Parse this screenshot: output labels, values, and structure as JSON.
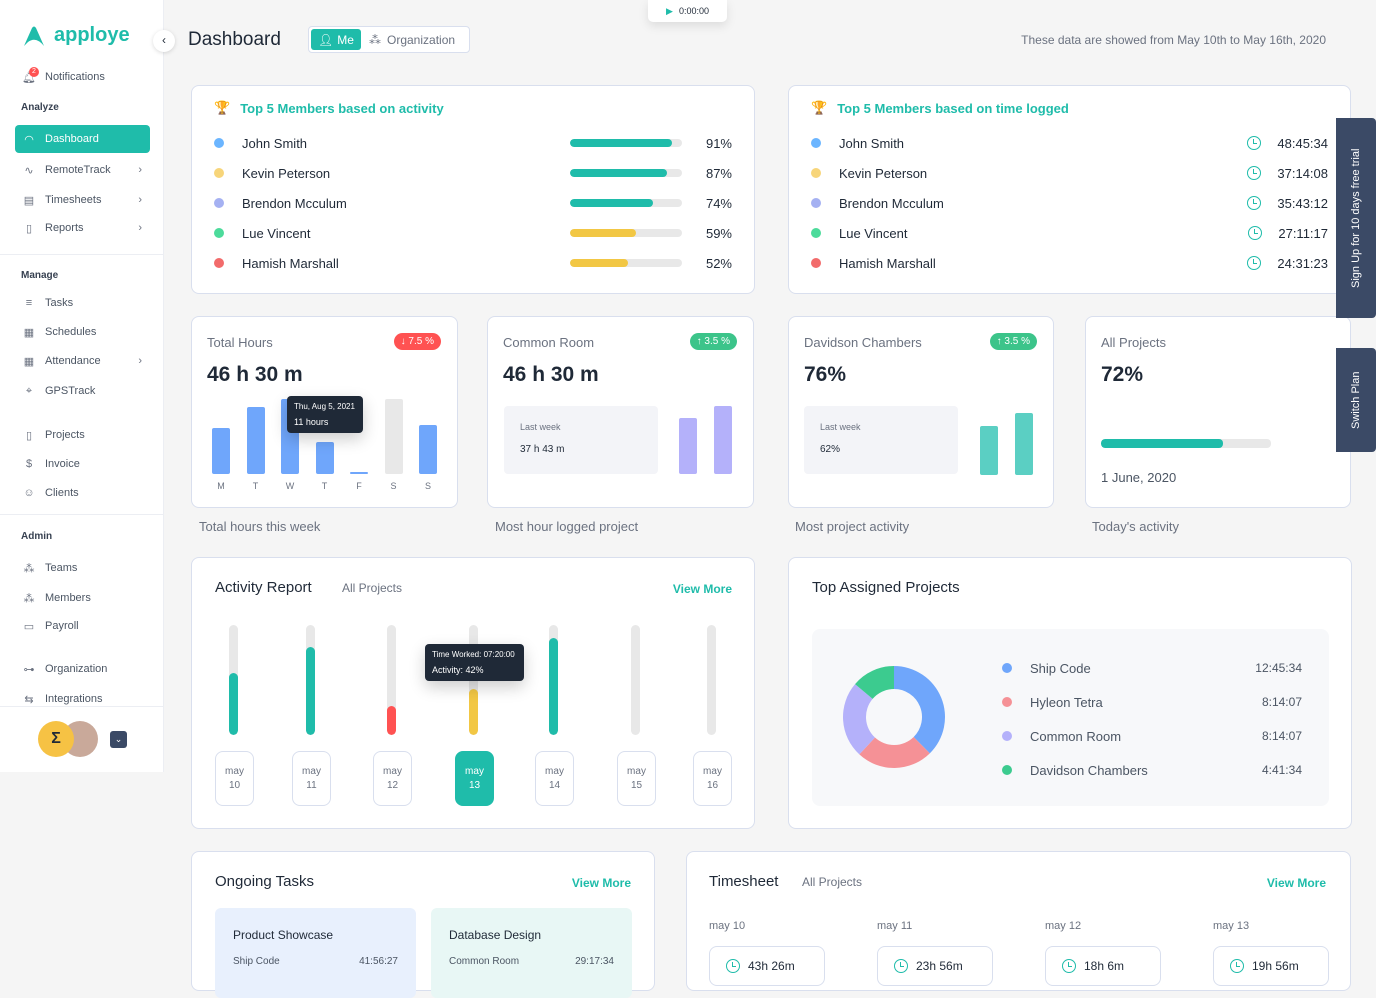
{
  "app": {
    "brand": "apploye",
    "timer": "0:00:00"
  },
  "colors": {
    "accent": "#1fbcaa",
    "danger": "#ff5252",
    "success": "#3cc48a",
    "warning": "#f2c744",
    "navy": "#3b4a66"
  },
  "sidebar": {
    "notifications": {
      "label": "Notifications",
      "count": "2"
    },
    "sections": {
      "analyze": "Analyze",
      "manage": "Manage",
      "admin": "Admin"
    },
    "items": [
      {
        "label": "Dashboard",
        "icon": "gauge-icon",
        "active": true
      },
      {
        "label": "RemoteTrack",
        "icon": "pulse-icon",
        "chevron": true
      },
      {
        "label": "Timesheets",
        "icon": "timesheet-icon",
        "chevron": true
      },
      {
        "label": "Reports",
        "icon": "report-icon",
        "chevron": true
      },
      {
        "label": "Tasks",
        "icon": "list-icon"
      },
      {
        "label": "Schedules",
        "icon": "calendar-icon"
      },
      {
        "label": "Attendance",
        "icon": "attendance-icon",
        "chevron": true
      },
      {
        "label": "GPSTrack",
        "icon": "location-icon"
      },
      {
        "label": "Projects",
        "icon": "file-icon"
      },
      {
        "label": "Invoice",
        "icon": "invoice-icon"
      },
      {
        "label": "Clients",
        "icon": "client-icon"
      },
      {
        "label": "Teams",
        "icon": "teams-icon"
      },
      {
        "label": "Members",
        "icon": "members-icon"
      },
      {
        "label": "Payroll",
        "icon": "wallet-icon"
      },
      {
        "label": "Organization",
        "icon": "org-icon"
      },
      {
        "label": "Integrations",
        "icon": "integrations-icon"
      }
    ]
  },
  "header": {
    "title": "Dashboard",
    "toggle": {
      "me": "Me",
      "org": "Organization",
      "selected": "Me"
    },
    "range": "These data are showed from May 10th to May 16th, 2020"
  },
  "top_activity": {
    "title": "Top 5 Members based on activity",
    "members": [
      {
        "name": "John Smith",
        "color": "#6bb5ff",
        "percent": 91,
        "label": "91%",
        "bar": "#1fbcaa"
      },
      {
        "name": "Kevin Peterson",
        "color": "#f7d57a",
        "percent": 87,
        "label": "87%",
        "bar": "#1fbcaa"
      },
      {
        "name": "Brendon Mcculum",
        "color": "#a5b1f2",
        "percent": 74,
        "label": "74%",
        "bar": "#1fbcaa"
      },
      {
        "name": "Lue Vincent",
        "color": "#4cdb9b",
        "percent": 59,
        "label": "59%",
        "bar": "#f2c744"
      },
      {
        "name": "Hamish Marshall",
        "color": "#f26b6b",
        "percent": 52,
        "label": "52%",
        "bar": "#f2c744"
      }
    ]
  },
  "top_time": {
    "title": "Top 5 Members based on time logged",
    "members": [
      {
        "name": "John Smith",
        "color": "#6bb5ff",
        "time": "48:45:34"
      },
      {
        "name": "Kevin Peterson",
        "color": "#f7d57a",
        "time": "37:14:08"
      },
      {
        "name": "Brendon Mcculum",
        "color": "#a5b1f2",
        "time": "35:43:12"
      },
      {
        "name": "Lue Vincent",
        "color": "#4cdb9b",
        "time": "27:11:17"
      },
      {
        "name": "Hamish Marshall",
        "color": "#f26b6b",
        "time": "24:31:23"
      }
    ]
  },
  "stats": {
    "total": {
      "title": "Total Hours",
      "value": "46 h 30 m",
      "badge": "↓ 7.5 %",
      "caption": "Total hours this week",
      "tooltip": {
        "date": "Thu, Aug 5, 2021",
        "value": "11 hours"
      },
      "days": [
        "M",
        "T",
        "W",
        "T",
        "F",
        "S",
        "S"
      ],
      "hours": [
        16,
        23,
        26,
        11,
        0.5,
        26,
        17
      ],
      "empty": [
        false,
        false,
        false,
        false,
        false,
        true,
        false
      ]
    },
    "common": {
      "title": "Common Room",
      "value": "46 h 30 m",
      "badge": "↑ 3.5 %",
      "last_label": "Last week",
      "last_value": "37 h 43 m",
      "caption": "Most hour logged project"
    },
    "davidson": {
      "title": "Davidson Chambers",
      "value": "76%",
      "badge": "↑ 3.5 %",
      "last_label": "Last week",
      "last_value": "62%",
      "caption": "Most project activity"
    },
    "all": {
      "title": "All Projects",
      "value": "72%",
      "progress": 72,
      "date": "1 June, 2020",
      "caption": "Today's activity"
    }
  },
  "activity": {
    "title": "Activity Report",
    "filter": "All Projects",
    "view_more": "View More",
    "tooltip": {
      "time": "Time Worked: 07:20:00",
      "activity": "Activity: 42%"
    },
    "days": [
      {
        "m": "may",
        "d": "10",
        "a": 56
      },
      {
        "m": "may",
        "d": "11",
        "a": 80
      },
      {
        "m": "may",
        "d": "12",
        "a": 26
      },
      {
        "m": "may",
        "d": "13",
        "a": 42,
        "selected": true
      },
      {
        "m": "may",
        "d": "14",
        "a": 88
      },
      {
        "m": "may",
        "d": "15",
        "a": 0
      },
      {
        "m": "may",
        "d": "16",
        "a": 0
      }
    ]
  },
  "assigned": {
    "title": "Top Assigned Projects",
    "projects": [
      {
        "name": "Ship Code",
        "time": "12:45:34",
        "color": "#6fa6fb"
      },
      {
        "name": "Hyleon Tetra",
        "time": "8:14:07",
        "color": "#f59196"
      },
      {
        "name": "Common Room",
        "time": "8:14:07",
        "color": "#b4b1fa"
      },
      {
        "name": "Davidson Chambers",
        "time": "4:41:34",
        "color": "#3ccb8f"
      }
    ]
  },
  "ongoing": {
    "title": "Ongoing Tasks",
    "view_more": "View More",
    "tasks": [
      {
        "name": "Product Showcase",
        "project": "Ship Code",
        "time": "41:56:27",
        "bg": "#e8f0fd"
      },
      {
        "name": "Database Design",
        "project": "Common Room",
        "time": "29:17:34",
        "bg": "#e8f7f5"
      }
    ]
  },
  "timesheet": {
    "title": "Timesheet",
    "filter": "All Projects",
    "view_more": "View More",
    "days": [
      {
        "date": "may 10",
        "total": "43h 26m"
      },
      {
        "date": "may 11",
        "total": "23h 56m"
      },
      {
        "date": "may 12",
        "total": "18h 6m"
      },
      {
        "date": "may 13",
        "total": "19h 56m"
      }
    ]
  },
  "side_tabs": {
    "signup": "Sign Up for 10 days free trial",
    "switch": "Switch Plan"
  }
}
